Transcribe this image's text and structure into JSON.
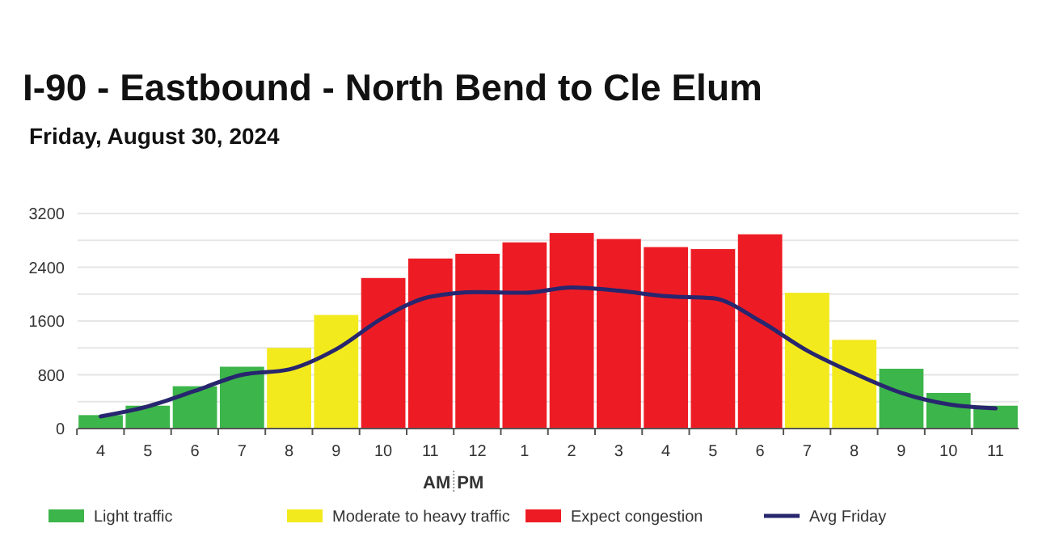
{
  "chart_data": {
    "type": "bar",
    "title": "I-90 - Eastbound - North Bend to Cle Elum",
    "subtitle": "Friday, August 30, 2024",
    "categories": [
      "4",
      "5",
      "6",
      "7",
      "8",
      "9",
      "10",
      "11",
      "12",
      "1",
      "2",
      "3",
      "4",
      "5",
      "6",
      "7",
      "8",
      "9",
      "10",
      "11"
    ],
    "ylim": [
      0,
      3200
    ],
    "yticks": [
      0,
      {
        "value": 400,
        "label": null
      },
      800,
      {
        "value": 1200,
        "label": null
      },
      1600,
      {
        "value": 2000,
        "label": null
      },
      2400,
      {
        "value": 2800,
        "label": null
      },
      3200
    ],
    "grid": "y",
    "legend": "bottom",
    "annotations": [
      "AM",
      "PM"
    ],
    "series": [
      {
        "name": "Light traffic",
        "color": "#3cb54a",
        "values": [
          200,
          340,
          630,
          920,
          null,
          null,
          null,
          null,
          null,
          null,
          null,
          null,
          null,
          null,
          null,
          null,
          null,
          890,
          530,
          340
        ]
      },
      {
        "name": "Moderate to heavy traffic",
        "color": "#f2ea1d",
        "values": [
          null,
          null,
          null,
          null,
          1200,
          1690,
          null,
          null,
          null,
          null,
          null,
          null,
          null,
          null,
          null,
          2020,
          1320,
          null,
          null,
          null
        ]
      },
      {
        "name": "Expect congestion",
        "color": "#ed1c24",
        "values": [
          null,
          null,
          null,
          null,
          null,
          null,
          2240,
          2530,
          2600,
          2770,
          2910,
          2820,
          2700,
          2670,
          2890,
          null,
          null,
          null,
          null,
          null
        ]
      },
      {
        "name": "Avg Friday",
        "type": "line",
        "color": "#27266e",
        "values": [
          180,
          330,
          560,
          800,
          880,
          1180,
          1650,
          1960,
          2030,
          2020,
          2100,
          2050,
          1970,
          1940,
          1600,
          1160,
          820,
          530,
          360,
          300
        ]
      }
    ]
  }
}
